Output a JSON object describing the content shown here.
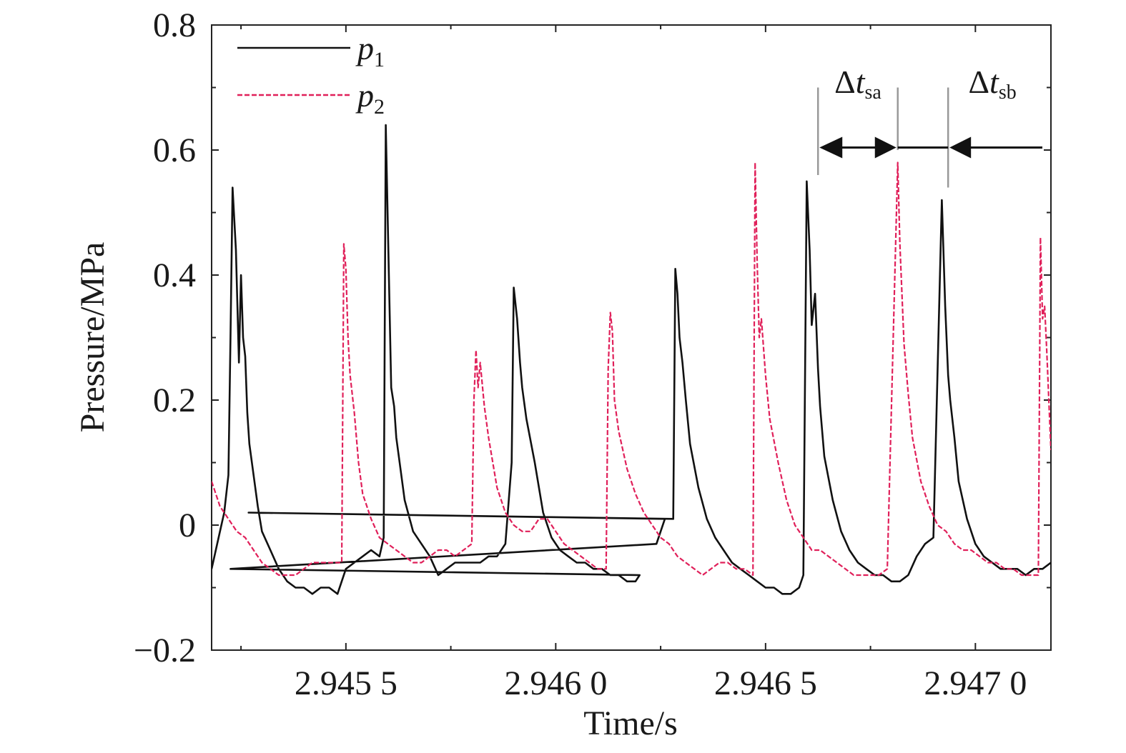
{
  "chart_data": {
    "type": "line",
    "title": "",
    "xlabel": "Time/s",
    "ylabel": "Pressure/MPa",
    "xlim": [
      2.94518,
      2.94718
    ],
    "ylim": [
      -0.2,
      0.8
    ],
    "x_ticks": [
      {
        "value": 2.9455,
        "label": "2.945 5"
      },
      {
        "value": 2.946,
        "label": "2.946 0"
      },
      {
        "value": 2.9465,
        "label": "2.946 5"
      },
      {
        "value": 2.947,
        "label": "2.947 0"
      }
    ],
    "y_ticks": [
      {
        "value": -0.2,
        "label": "−0.2"
      },
      {
        "value": 0,
        "label": "0"
      },
      {
        "value": 0.2,
        "label": "0.2"
      },
      {
        "value": 0.4,
        "label": "0.4"
      },
      {
        "value": 0.6,
        "label": "0.6"
      },
      {
        "value": 0.8,
        "label": "0.8"
      }
    ],
    "legend": {
      "position": "top-left"
    },
    "series": [
      {
        "name": "p",
        "subscript": "1",
        "color": "#111111",
        "style": "solid",
        "x": [
          2.94518,
          2.9452,
          2.94521,
          2.94522,
          2.945225,
          2.94523,
          2.945238,
          2.945245,
          2.94525,
          2.945255,
          2.94526,
          2.945265,
          2.94527,
          2.94528,
          2.94529,
          2.9453,
          2.94532,
          2.94534,
          2.94536,
          2.94538,
          2.9454,
          2.94542,
          2.94544,
          2.94546,
          2.94548,
          2.9455,
          2.94552,
          2.94554,
          2.94556,
          2.94558,
          2.94559,
          2.945595,
          2.9456,
          2.945608,
          2.945615,
          2.94562,
          2.945628,
          2.94564,
          2.94566,
          2.94568,
          2.9457,
          2.94572,
          2.94574,
          2.94576,
          2.94578,
          2.9458,
          2.94582,
          2.94584,
          2.94586,
          2.94588,
          2.945895,
          2.9459,
          2.945908,
          2.945915,
          2.94592,
          2.94593,
          2.94595,
          2.94597,
          2.94599,
          2.94601,
          2.94603,
          2.94605,
          2.94607,
          2.94609,
          2.94611,
          2.94613,
          2.94615,
          2.94617,
          2.94619,
          2.9462,
          2.945225,
          2.94624,
          2.94626,
          2.945268,
          2.94628,
          2.946285,
          2.94629,
          2.946295,
          2.946302,
          2.94631,
          2.94632,
          2.94634,
          2.94636,
          2.94638,
          2.9464,
          2.94642,
          2.94644,
          2.94646,
          2.94648,
          2.9465,
          2.94652,
          2.94654,
          2.94656,
          2.94658,
          2.94659,
          2.946598,
          2.946605,
          2.94661,
          2.946618,
          2.946625,
          2.94663,
          2.94664,
          2.94666,
          2.94668,
          2.9467,
          2.94672,
          2.94674,
          2.94676,
          2.94678,
          2.9468,
          2.94682,
          2.94684,
          2.94686,
          2.94688,
          2.9469,
          2.94692,
          2.946928,
          2.946935,
          2.94694,
          2.94695,
          2.94696,
          2.94698,
          2.947,
          2.94702,
          2.94704,
          2.94706,
          2.94708,
          2.9471,
          2.94712,
          2.94714,
          2.94716,
          2.94718
        ],
        "y": [
          -0.07,
          -0.01,
          0.02,
          0.08,
          0.3,
          0.54,
          0.44,
          0.26,
          0.4,
          0.3,
          0.27,
          0.18,
          0.13,
          0.08,
          0.03,
          -0.01,
          -0.04,
          -0.07,
          -0.09,
          -0.1,
          -0.1,
          -0.11,
          -0.1,
          -0.1,
          -0.11,
          -0.07,
          -0.06,
          -0.05,
          -0.04,
          -0.05,
          -0.02,
          0.64,
          0.48,
          0.22,
          0.19,
          0.14,
          0.1,
          0.04,
          -0.01,
          -0.03,
          -0.05,
          -0.08,
          -0.07,
          -0.06,
          -0.06,
          -0.06,
          -0.06,
          -0.05,
          -0.05,
          -0.03,
          0.1,
          0.38,
          0.33,
          0.26,
          0.22,
          0.17,
          0.1,
          0.02,
          -0.02,
          -0.04,
          -0.05,
          -0.06,
          -0.06,
          -0.07,
          -0.07,
          -0.08,
          -0.08,
          -0.09,
          -0.09,
          -0.08,
          -0.07,
          -0.03,
          0.01,
          0.02,
          0.01,
          0.41,
          0.37,
          0.3,
          0.26,
          0.2,
          0.13,
          0.06,
          0.01,
          -0.02,
          -0.04,
          -0.06,
          -0.07,
          -0.08,
          -0.09,
          -0.1,
          -0.1,
          -0.11,
          -0.11,
          -0.1,
          -0.08,
          0.55,
          0.44,
          0.32,
          0.37,
          0.25,
          0.19,
          0.11,
          0.04,
          -0.01,
          -0.04,
          -0.06,
          -0.07,
          -0.08,
          -0.08,
          -0.09,
          -0.09,
          -0.08,
          -0.05,
          -0.03,
          -0.02,
          0.52,
          0.35,
          0.24,
          0.2,
          0.14,
          0.07,
          0.01,
          -0.03,
          -0.05,
          -0.06,
          -0.07,
          -0.07,
          -0.07,
          -0.08,
          -0.07,
          -0.07,
          -0.06
        ]
      },
      {
        "name": "p",
        "subscript": "2",
        "color": "#e0205a",
        "style": "dashed",
        "x": [
          2.94518,
          2.9452,
          2.94522,
          2.94524,
          2.94526,
          2.94528,
          2.9453,
          2.94532,
          2.94534,
          2.94536,
          2.94538,
          2.9454,
          2.94542,
          2.94544,
          2.94546,
          2.94548,
          2.94549,
          2.945495,
          2.9455,
          2.945505,
          2.94551,
          2.94552,
          2.94553,
          2.94554,
          2.94556,
          2.94558,
          2.9456,
          2.94562,
          2.94564,
          2.94566,
          2.94568,
          2.9457,
          2.94572,
          2.94574,
          2.94576,
          2.94578,
          2.9458,
          2.945805,
          2.94581,
          2.945815,
          2.94582,
          2.94583,
          2.94584,
          2.94586,
          2.94588,
          2.9459,
          2.94592,
          2.94594,
          2.94596,
          2.94598,
          2.946,
          2.94602,
          2.94604,
          2.94606,
          2.94608,
          2.9461,
          2.94612,
          2.946125,
          2.94613,
          2.946135,
          2.94614,
          2.94615,
          2.94617,
          2.94619,
          2.94621,
          2.94623,
          2.94625,
          2.94627,
          2.94629,
          2.94631,
          2.94633,
          2.94635,
          2.94637,
          2.94639,
          2.94641,
          2.94643,
          2.94645,
          2.94647,
          2.946475,
          2.94648,
          2.946485,
          2.94649,
          2.9465,
          2.94651,
          2.94653,
          2.94655,
          2.94657,
          2.94659,
          2.94661,
          2.94663,
          2.94665,
          2.94667,
          2.94669,
          2.94671,
          2.94673,
          2.94675,
          2.94677,
          2.94679,
          2.946815,
          2.94682,
          2.946825,
          2.94683,
          2.94684,
          2.94685,
          2.94687,
          2.94689,
          2.94691,
          2.94693,
          2.94695,
          2.94697,
          2.94699,
          2.94701,
          2.94703,
          2.94705,
          2.94707,
          2.94709,
          2.94711,
          2.94713,
          2.94715,
          2.947155,
          2.94716,
          2.947165,
          2.94717,
          2.94718
        ],
        "y": [
          0.07,
          0.03,
          0.01,
          -0.01,
          -0.02,
          -0.04,
          -0.06,
          -0.07,
          -0.08,
          -0.08,
          -0.08,
          -0.07,
          -0.06,
          -0.06,
          -0.06,
          -0.06,
          -0.06,
          0.45,
          0.41,
          0.3,
          0.24,
          0.18,
          0.1,
          0.05,
          0.01,
          -0.02,
          -0.03,
          -0.04,
          -0.05,
          -0.06,
          -0.06,
          -0.05,
          -0.04,
          -0.04,
          -0.05,
          -0.04,
          -0.03,
          0.2,
          0.28,
          0.22,
          0.26,
          0.19,
          0.14,
          0.06,
          0.02,
          0.0,
          -0.01,
          -0.01,
          0.01,
          0.01,
          -0.01,
          -0.03,
          -0.04,
          -0.05,
          -0.06,
          -0.07,
          -0.07,
          0.25,
          0.34,
          0.31,
          0.2,
          0.15,
          0.09,
          0.05,
          0.02,
          0.0,
          -0.02,
          -0.03,
          -0.05,
          -0.06,
          -0.07,
          -0.08,
          -0.07,
          -0.06,
          -0.06,
          -0.07,
          -0.07,
          -0.08,
          0.58,
          0.42,
          0.3,
          0.33,
          0.24,
          0.17,
          0.1,
          0.04,
          0.0,
          -0.02,
          -0.04,
          -0.04,
          -0.05,
          -0.06,
          -0.07,
          -0.08,
          -0.08,
          -0.08,
          -0.08,
          -0.07,
          0.58,
          0.45,
          0.37,
          0.29,
          0.21,
          0.14,
          0.07,
          0.03,
          0.0,
          -0.01,
          -0.03,
          -0.04,
          -0.04,
          -0.05,
          -0.06,
          -0.06,
          -0.07,
          -0.07,
          -0.08,
          -0.08,
          -0.08,
          0.46,
          0.33,
          0.35,
          0.28,
          0.12
        ]
      }
    ],
    "annotations": [
      {
        "text": "Δ",
        "italic_symbol": "t",
        "subscript": "sa",
        "x_start": 2.946625,
        "x_end": 2.946815,
        "bar_y": 0.62
      },
      {
        "text": "Δ",
        "italic_symbol": "t",
        "subscript": "sb",
        "x_start": 2.946815,
        "x_end": 2.946935,
        "bar_y": 0.62
      }
    ]
  }
}
